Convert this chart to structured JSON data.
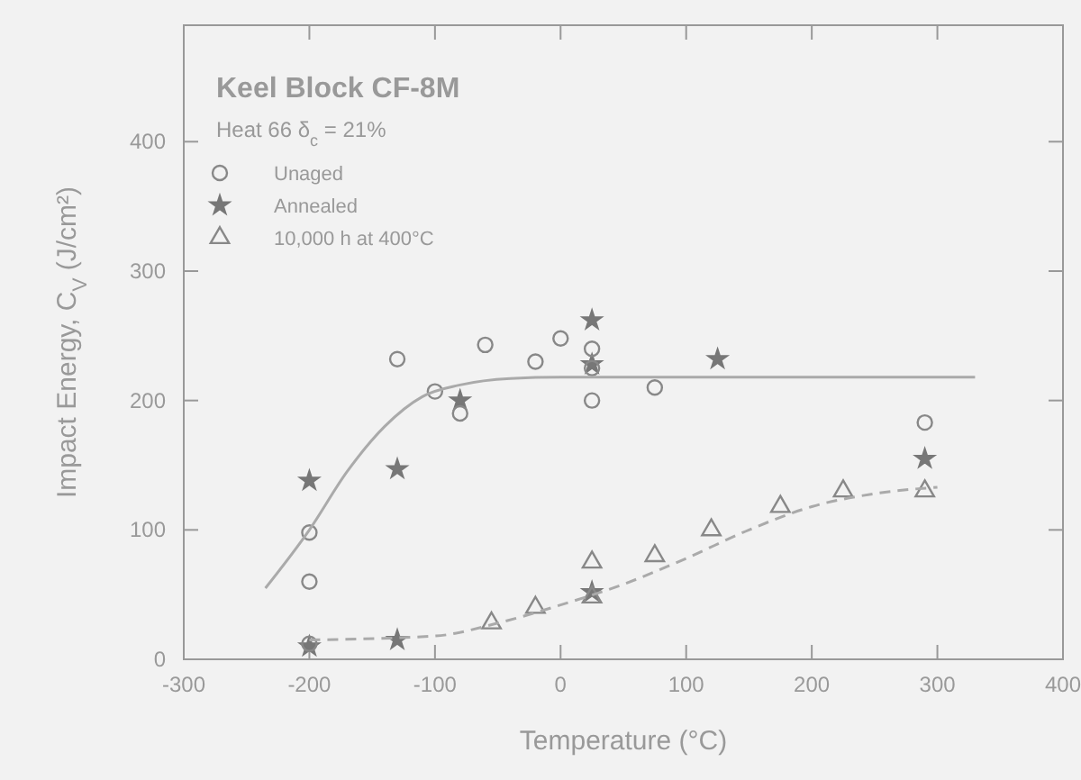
{
  "chart_data": {
    "type": "scatter",
    "title": "Keel Block CF-8M",
    "subtitle": "Heat 66  δ$_{c}$ = 21%",
    "xlabel": "Temperature (°C)",
    "ylabel": "Impact Energy, C$_{V}$ (J/cm²)",
    "xlim": [
      -300,
      400
    ],
    "ylim": [
      0,
      490
    ],
    "xticks": [
      -300,
      -200,
      -100,
      0,
      100,
      200,
      300,
      400
    ],
    "yticks": [
      0,
      100,
      200,
      300,
      400
    ],
    "legend": "top left",
    "grid": false,
    "series": [
      {
        "name": "Unaged",
        "color": "#888888",
        "marker": "circle",
        "x": [
          -200,
          -200,
          -200,
          -130,
          -100,
          -80,
          -60,
          -20,
          0,
          25,
          25,
          25,
          75,
          290
        ],
        "values": [
          12,
          60,
          98,
          232,
          207,
          190,
          243,
          230,
          248,
          240,
          225,
          200,
          210,
          183
        ]
      },
      {
        "name": "Annealed",
        "color": "#777777",
        "marker": "star",
        "x": [
          -200,
          -200,
          -130,
          -130,
          -80,
          25,
          25,
          25,
          125,
          290
        ],
        "values": [
          10,
          138,
          15,
          147,
          200,
          262,
          228,
          52,
          232,
          155
        ]
      },
      {
        "name": "10,000 h at 400°C",
        "color": "#888888",
        "marker": "triangle",
        "x": [
          -55,
          -20,
          25,
          25,
          75,
          120,
          175,
          225,
          290
        ],
        "values": [
          28,
          40,
          75,
          48,
          80,
          100,
          118,
          130,
          130
        ]
      },
      {
        "type": "line",
        "color": "#aaaaaa",
        "line_style": "solid",
        "x": [
          -235,
          -200,
          -170,
          -140,
          -110,
          -80,
          -40,
          0,
          100,
          200,
          330
        ],
        "values": [
          55,
          100,
          145,
          180,
          203,
          212,
          217,
          218,
          218,
          218,
          218
        ]
      },
      {
        "type": "line",
        "color": "#aaaaaa",
        "line_style": "dashed",
        "x": [
          -200,
          -100,
          -50,
          0,
          50,
          100,
          150,
          200,
          250,
          300
        ],
        "values": [
          15,
          18,
          28,
          42,
          58,
          78,
          100,
          118,
          128,
          133
        ]
      }
    ]
  }
}
